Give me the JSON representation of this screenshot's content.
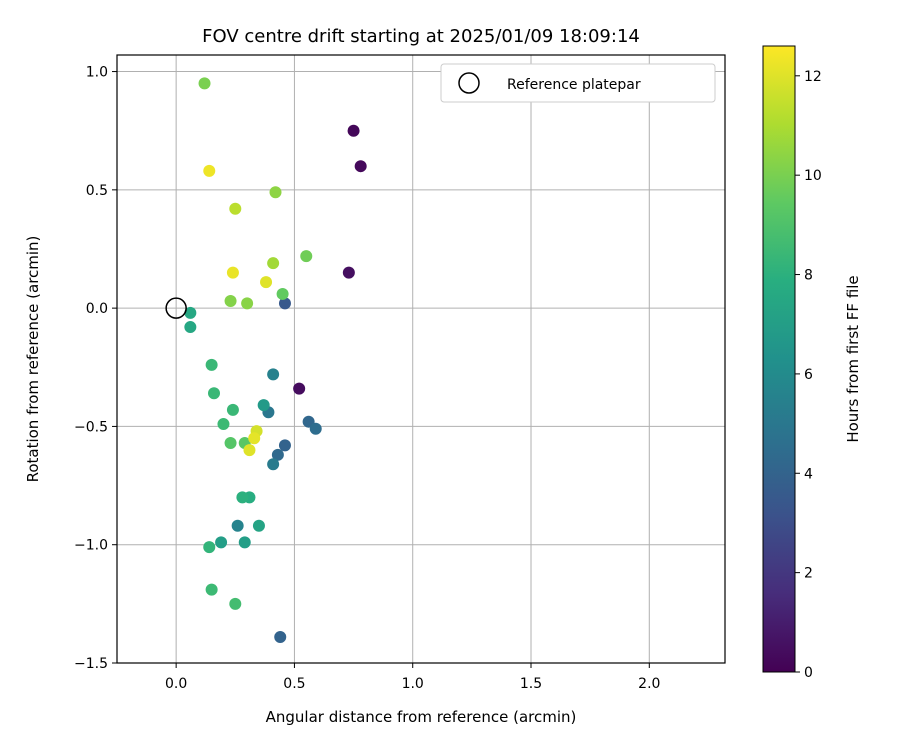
{
  "chart_data": {
    "type": "scatter",
    "title": "FOV centre drift starting at 2025/01/09 18:09:14",
    "xlabel": "Angular distance from reference (arcmin)",
    "ylabel": "Rotation from reference (arcmin)",
    "xlim": [
      -0.25,
      2.32
    ],
    "ylim": [
      -1.5,
      1.07
    ],
    "xticks": [
      0.0,
      0.5,
      1.0,
      1.5,
      2.0
    ],
    "xtick_labels": [
      "0.0",
      "0.5",
      "1.0",
      "1.5",
      "2.0"
    ],
    "yticks": [
      -1.5,
      -1.0,
      -0.5,
      0.0,
      0.5,
      1.0
    ],
    "ytick_labels": [
      "−1.5",
      "−1.0",
      "−0.5",
      "0.0",
      "0.5",
      "1.0"
    ],
    "grid": true,
    "legend": {
      "placement": "top-right",
      "entries": [
        {
          "label": "Reference platepar",
          "marker": "open-circle"
        }
      ]
    },
    "reference_point": {
      "x": 0.0,
      "y": 0.0
    },
    "colorbar": {
      "label": "Hours from first FF file",
      "colormap": "viridis",
      "range": [
        0,
        12.6
      ],
      "ticks": [
        0,
        2,
        4,
        6,
        8,
        10,
        12
      ],
      "tick_labels": [
        "0",
        "2",
        "4",
        "6",
        "8",
        "10",
        "12"
      ]
    },
    "series": [
      {
        "points": [
          {
            "x": 0.75,
            "y": 0.75,
            "hours": 0.2
          },
          {
            "x": 0.78,
            "y": 0.6,
            "hours": 0.3
          },
          {
            "x": 0.73,
            "y": 0.15,
            "hours": 0.5
          },
          {
            "x": 0.52,
            "y": -0.34,
            "hours": 0.4
          },
          {
            "x": 0.46,
            "y": 0.02,
            "hours": 3.5
          },
          {
            "x": 0.56,
            "y": -0.48,
            "hours": 4.2
          },
          {
            "x": 0.59,
            "y": -0.51,
            "hours": 4.5
          },
          {
            "x": 0.46,
            "y": -0.58,
            "hours": 4.0
          },
          {
            "x": 0.43,
            "y": -0.62,
            "hours": 4.3
          },
          {
            "x": 0.44,
            "y": -1.39,
            "hours": 4.0
          },
          {
            "x": 0.39,
            "y": -0.44,
            "hours": 5.0
          },
          {
            "x": 0.41,
            "y": -0.66,
            "hours": 5.2
          },
          {
            "x": 0.41,
            "y": -0.28,
            "hours": 5.5
          },
          {
            "x": 0.26,
            "y": -0.92,
            "hours": 5.6
          },
          {
            "x": 0.37,
            "y": -0.41,
            "hours": 6.8
          },
          {
            "x": 0.29,
            "y": -0.99,
            "hours": 7.0
          },
          {
            "x": 0.19,
            "y": -0.99,
            "hours": 7.0
          },
          {
            "x": 0.35,
            "y": -0.92,
            "hours": 7.3
          },
          {
            "x": 0.06,
            "y": -0.02,
            "hours": 7.5
          },
          {
            "x": 0.06,
            "y": -0.08,
            "hours": 7.5
          },
          {
            "x": 0.31,
            "y": -0.8,
            "hours": 7.8
          },
          {
            "x": 0.28,
            "y": -0.8,
            "hours": 8.0
          },
          {
            "x": 0.14,
            "y": -1.01,
            "hours": 8.2
          },
          {
            "x": 0.15,
            "y": -0.24,
            "hours": 8.4
          },
          {
            "x": 0.16,
            "y": -0.36,
            "hours": 8.4
          },
          {
            "x": 0.24,
            "y": -0.43,
            "hours": 8.4
          },
          {
            "x": 0.2,
            "y": -0.49,
            "hours": 8.5
          },
          {
            "x": 0.15,
            "y": -1.19,
            "hours": 8.5
          },
          {
            "x": 0.25,
            "y": -1.25,
            "hours": 8.7
          },
          {
            "x": 0.23,
            "y": -0.57,
            "hours": 9.2
          },
          {
            "x": 0.29,
            "y": -0.57,
            "hours": 9.3
          },
          {
            "x": 0.45,
            "y": 0.06,
            "hours": 9.5
          },
          {
            "x": 0.55,
            "y": 0.22,
            "hours": 9.8
          },
          {
            "x": 0.12,
            "y": 0.95,
            "hours": 10.0
          },
          {
            "x": 0.23,
            "y": 0.03,
            "hours": 10.2
          },
          {
            "x": 0.3,
            "y": 0.02,
            "hours": 10.3
          },
          {
            "x": 0.42,
            "y": 0.49,
            "hours": 10.4
          },
          {
            "x": 0.41,
            "y": 0.19,
            "hours": 10.8
          },
          {
            "x": 0.25,
            "y": 0.42,
            "hours": 11.3
          },
          {
            "x": 0.14,
            "y": 0.58,
            "hours": 12.3
          },
          {
            "x": 0.24,
            "y": 0.15,
            "hours": 12.2
          },
          {
            "x": 0.38,
            "y": 0.11,
            "hours": 12.0
          },
          {
            "x": 0.34,
            "y": -0.52,
            "hours": 11.8
          },
          {
            "x": 0.33,
            "y": -0.55,
            "hours": 12.1
          },
          {
            "x": 0.31,
            "y": -0.6,
            "hours": 12.0
          }
        ]
      }
    ]
  }
}
